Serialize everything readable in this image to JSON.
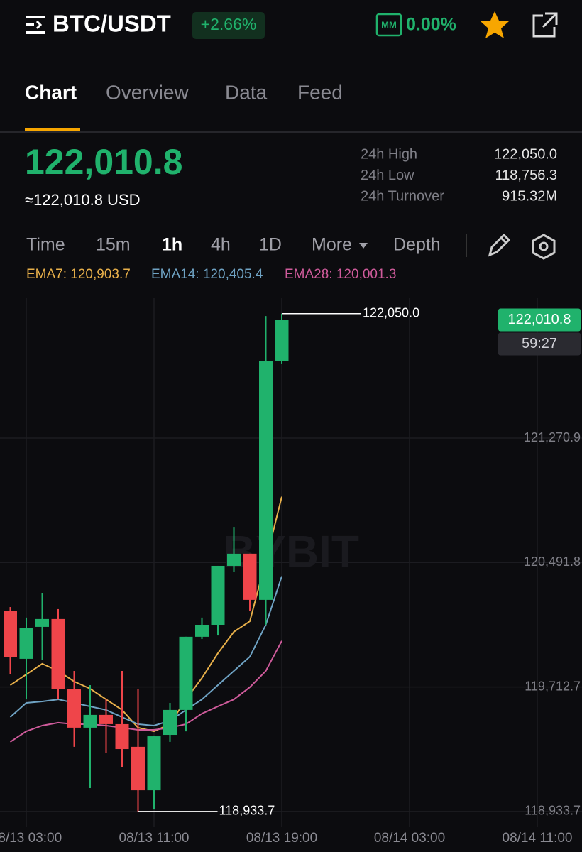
{
  "header": {
    "title": "BTC/USDT",
    "change": "+2.66%",
    "mm_badge": "MM",
    "mm_value": "0.00%"
  },
  "tabs": [
    "Chart",
    "Overview",
    "Data",
    "Feed"
  ],
  "quote": {
    "price": "122,010.8",
    "price_usd": "≈122,010.8 USD",
    "stats": [
      {
        "label": "24h High",
        "value": "122,050.0"
      },
      {
        "label": "24h Low",
        "value": "118,756.3"
      },
      {
        "label": "24h Turnover",
        "value": "915.32M"
      }
    ]
  },
  "timeframes": [
    "Time",
    "15m",
    "1h",
    "4h",
    "1D",
    "More",
    "Depth"
  ],
  "chart_data": {
    "type": "candlestick",
    "watermark": "BYBIT",
    "up_color": "#20b26c",
    "down_color": "#ef454a",
    "open": [
      120190.9,
      119889,
      120089,
      120138,
      119702,
      119458,
      119538,
      119480,
      119338,
      119066,
      119413,
      119569,
      120027,
      120102,
      120471,
      120547,
      120258,
      121755
    ],
    "high": [
      120213,
      120147,
      120302,
      120200,
      119813,
      119724,
      119635,
      119813,
      119702,
      119404,
      119613,
      120027,
      120147,
      120471,
      120715,
      120547,
      122035,
      122050.0
    ],
    "low": [
      119791,
      119635,
      119880,
      119635,
      119338,
      119080,
      119302,
      119213,
      118933.7,
      118946,
      119369,
      119435,
      120013,
      120035,
      120435,
      120191,
      120102,
      121738
    ],
    "close": [
      119902,
      120080,
      120138,
      119702,
      119458,
      119538,
      119480,
      119324,
      119066,
      119404,
      119569,
      120027,
      120102,
      120471,
      120547,
      120258,
      121755,
      122010.8
    ],
    "series": [
      {
        "name": "EMA7",
        "label": "EMA7: 120,903.7",
        "color": "#e8b04a",
        "values": [
          119724,
          119791,
          119858,
          119813,
          119747,
          119702,
          119635,
          119569,
          119458,
          119435,
          119480,
          119635,
          119769,
          119924,
          120058,
          120124,
          120502,
          120903.7
        ]
      },
      {
        "name": "EMA14",
        "label": "EMA14: 120,405.4",
        "color": "#6fa3c4",
        "values": [
          119524,
          119613,
          119622,
          119635,
          119613,
          119591,
          119569,
          119524,
          119480,
          119471,
          119502,
          119569,
          119635,
          119724,
          119813,
          119902,
          120102,
          120405.4
        ]
      },
      {
        "name": "EMA28",
        "label": "EMA28: 120,001.3",
        "color": "#cf5b9b",
        "values": [
          119369,
          119435,
          119471,
          119489,
          119480,
          119480,
          119471,
          119458,
          119444,
          119444,
          119458,
          119480,
          119546,
          119591,
          119635,
          119711,
          119813,
          120001.3
        ]
      }
    ],
    "ylim": [
      118835.3,
      122146.5
    ],
    "yticks": [
      {
        "value": 121270.9,
        "label": "121,270.9"
      },
      {
        "value": 120491.8,
        "label": "120,491.8"
      },
      {
        "value": 119712.7,
        "label": "119,712.7"
      },
      {
        "value": 118933.7,
        "label": "118,933.7"
      }
    ],
    "xticks": [
      "08/13 03:00",
      "08/13 11:00",
      "08/13 19:00",
      "08/14 03:00",
      "08/14 11:00"
    ],
    "high_marker": {
      "value": 122050.0,
      "label": "122,050.0"
    },
    "low_marker": {
      "value": 118933.7,
      "label": "118,933.7"
    },
    "last_price": {
      "value": 122010.8,
      "label": "122,010.8"
    },
    "countdown": "59:27",
    "grid": true
  }
}
